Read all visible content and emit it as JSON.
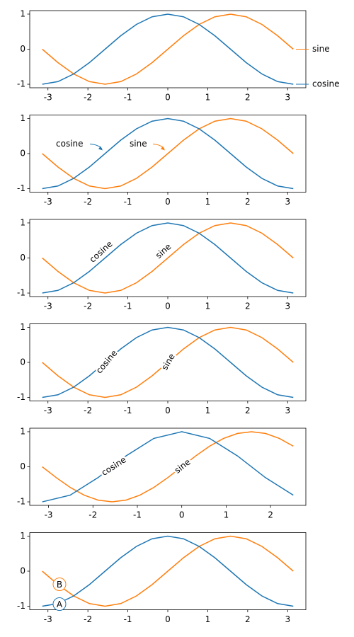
{
  "chart_data": [
    {
      "type": "line",
      "x": [
        -3.142,
        -2.749,
        -2.356,
        -1.963,
        -1.571,
        -1.178,
        -0.785,
        -0.393,
        0,
        0.393,
        0.785,
        1.178,
        1.571,
        1.963,
        2.356,
        2.749,
        3.142
      ],
      "series": [
        {
          "name": "sine",
          "color": "#ff7f0e",
          "values": [
            0,
            -0.383,
            -0.707,
            -0.924,
            -1,
            -0.924,
            -0.707,
            -0.383,
            0,
            0.383,
            0.707,
            0.924,
            1,
            0.924,
            0.707,
            0.383,
            0
          ]
        },
        {
          "name": "cosine",
          "color": "#1f77b4",
          "values": [
            -1,
            -0.924,
            -0.707,
            -0.383,
            0,
            0.383,
            0.707,
            0.924,
            1,
            0.924,
            0.707,
            0.383,
            0,
            -0.383,
            -0.707,
            -0.924,
            -1
          ]
        }
      ],
      "xlim": [
        -3.456,
        3.456
      ],
      "ylim": [
        -1.1,
        1.1
      ],
      "xticks": [
        -3,
        -2,
        -1,
        0,
        1,
        2,
        3
      ],
      "yticks": [
        -1,
        0,
        1
      ]
    },
    {
      "type": "line",
      "x": [
        -3.142,
        -2.749,
        -2.356,
        -1.963,
        -1.571,
        -1.178,
        -0.785,
        -0.393,
        0,
        0.393,
        0.785,
        1.178,
        1.571,
        1.963,
        2.356,
        2.749,
        3.142
      ],
      "series": [
        {
          "name": "sine",
          "color": "#ff7f0e",
          "values": [
            0,
            -0.383,
            -0.707,
            -0.924,
            -1,
            -0.924,
            -0.707,
            -0.383,
            0,
            0.383,
            0.707,
            0.924,
            1,
            0.924,
            0.707,
            0.383,
            0
          ]
        },
        {
          "name": "cosine",
          "color": "#1f77b4",
          "values": [
            -1,
            -0.924,
            -0.707,
            -0.383,
            0,
            0.383,
            0.707,
            0.924,
            1,
            0.924,
            0.707,
            0.383,
            0,
            -0.383,
            -0.707,
            -0.924,
            -1
          ]
        }
      ],
      "xlim": [
        -3.456,
        3.456
      ],
      "ylim": [
        -1.1,
        1.1
      ],
      "xticks": [
        -3,
        -2,
        -1,
        0,
        1,
        2,
        3
      ],
      "yticks": [
        -1,
        0,
        1
      ]
    },
    {
      "type": "line",
      "x": [
        -3.142,
        -2.749,
        -2.356,
        -1.963,
        -1.571,
        -1.178,
        -0.785,
        -0.393,
        0,
        0.393,
        0.785,
        1.178,
        1.571,
        1.963,
        2.356,
        2.749,
        3.142
      ],
      "series": [
        {
          "name": "sine",
          "color": "#ff7f0e",
          "values": [
            0,
            -0.383,
            -0.707,
            -0.924,
            -1,
            -0.924,
            -0.707,
            -0.383,
            0,
            0.383,
            0.707,
            0.924,
            1,
            0.924,
            0.707,
            0.383,
            0
          ]
        },
        {
          "name": "cosine",
          "color": "#1f77b4",
          "values": [
            -1,
            -0.924,
            -0.707,
            -0.383,
            0,
            0.383,
            0.707,
            0.924,
            1,
            0.924,
            0.707,
            0.383,
            0,
            -0.383,
            -0.707,
            -0.924,
            -1
          ]
        }
      ],
      "xlim": [
        -3.456,
        3.456
      ],
      "ylim": [
        -1.1,
        1.1
      ],
      "xticks": [
        -3,
        -2,
        -1,
        0,
        1,
        2,
        3
      ],
      "yticks": [
        -1,
        0,
        1
      ]
    },
    {
      "type": "line",
      "x": [
        -3.142,
        -2.749,
        -2.356,
        -1.963,
        -1.571,
        -1.178,
        -0.785,
        -0.393,
        0,
        0.393,
        0.785,
        1.178,
        1.571,
        1.963,
        2.356,
        2.749,
        3.142
      ],
      "series": [
        {
          "name": "sine",
          "color": "#ff7f0e",
          "values": [
            0,
            -0.383,
            -0.707,
            -0.924,
            -1,
            -0.924,
            -0.707,
            -0.383,
            0,
            0.383,
            0.707,
            0.924,
            1,
            0.924,
            0.707,
            0.383,
            0
          ]
        },
        {
          "name": "cosine",
          "color": "#1f77b4",
          "values": [
            -1,
            -0.924,
            -0.707,
            -0.383,
            0,
            0.383,
            0.707,
            0.924,
            1,
            0.924,
            0.707,
            0.383,
            0,
            -0.383,
            -0.707,
            -0.924,
            -1
          ]
        }
      ],
      "xlim": [
        -3.456,
        3.456
      ],
      "ylim": [
        -1.1,
        1.1
      ],
      "xticks": [
        -3,
        -2,
        -1,
        0,
        1,
        2,
        3
      ],
      "yticks": [
        -1,
        0,
        1
      ]
    },
    {
      "type": "line",
      "series": [
        {
          "name": "sine",
          "color": "#ff7f0e",
          "x": [
            -3.142,
            -2.827,
            -2.513,
            -2.199,
            -1.885,
            -1.571,
            -1.257,
            -0.942,
            -0.628,
            -0.314,
            0,
            0.314,
            0.628,
            0.942,
            1.257,
            1.571,
            1.885,
            2.199,
            2.513
          ],
          "values": [
            0,
            -0.309,
            -0.588,
            -0.809,
            -0.951,
            -1,
            -0.951,
            -0.809,
            -0.588,
            -0.309,
            0,
            0.309,
            0.588,
            0.809,
            0.951,
            1,
            0.951,
            0.809,
            0.588
          ]
        },
        {
          "name": "cosine",
          "color": "#1f77b4",
          "x": [
            -3.142,
            -2.513,
            -1.885,
            -1.257,
            -0.628,
            0,
            0.628,
            1.257,
            1.885,
            2.513
          ],
          "values": [
            -1,
            -0.809,
            -0.309,
            0.309,
            0.809,
            1,
            0.809,
            0.309,
            -0.309,
            -0.809
          ]
        }
      ],
      "xlim": [
        -3.424,
        2.796
      ],
      "ylim": [
        -1.1,
        1.1
      ],
      "xticks": [
        -3,
        -2,
        -1,
        0,
        1,
        2
      ],
      "yticks": [
        -1,
        0,
        1
      ]
    },
    {
      "type": "line",
      "x": [
        -3.142,
        -2.749,
        -2.356,
        -1.963,
        -1.571,
        -1.178,
        -0.785,
        -0.393,
        0,
        0.393,
        0.785,
        1.178,
        1.571,
        1.963,
        2.356,
        2.749,
        3.142
      ],
      "series": [
        {
          "name": "sine",
          "color": "#ff7f0e",
          "values": [
            0,
            -0.383,
            -0.707,
            -0.924,
            -1,
            -0.924,
            -0.707,
            -0.383,
            0,
            0.383,
            0.707,
            0.924,
            1,
            0.924,
            0.707,
            0.383,
            0
          ]
        },
        {
          "name": "cosine",
          "color": "#1f77b4",
          "values": [
            -1,
            -0.924,
            -0.707,
            -0.383,
            0,
            0.383,
            0.707,
            0.924,
            1,
            0.924,
            0.707,
            0.383,
            0,
            -0.383,
            -0.707,
            -0.924,
            -1
          ]
        }
      ],
      "annotations": [
        "A",
        "B"
      ],
      "xlim": [
        -3.456,
        3.456
      ],
      "ylim": [
        -1.1,
        1.1
      ],
      "xticks": [
        -3,
        -2,
        -1,
        0,
        1,
        2,
        3
      ],
      "yticks": [
        -1,
        0,
        1
      ]
    }
  ]
}
